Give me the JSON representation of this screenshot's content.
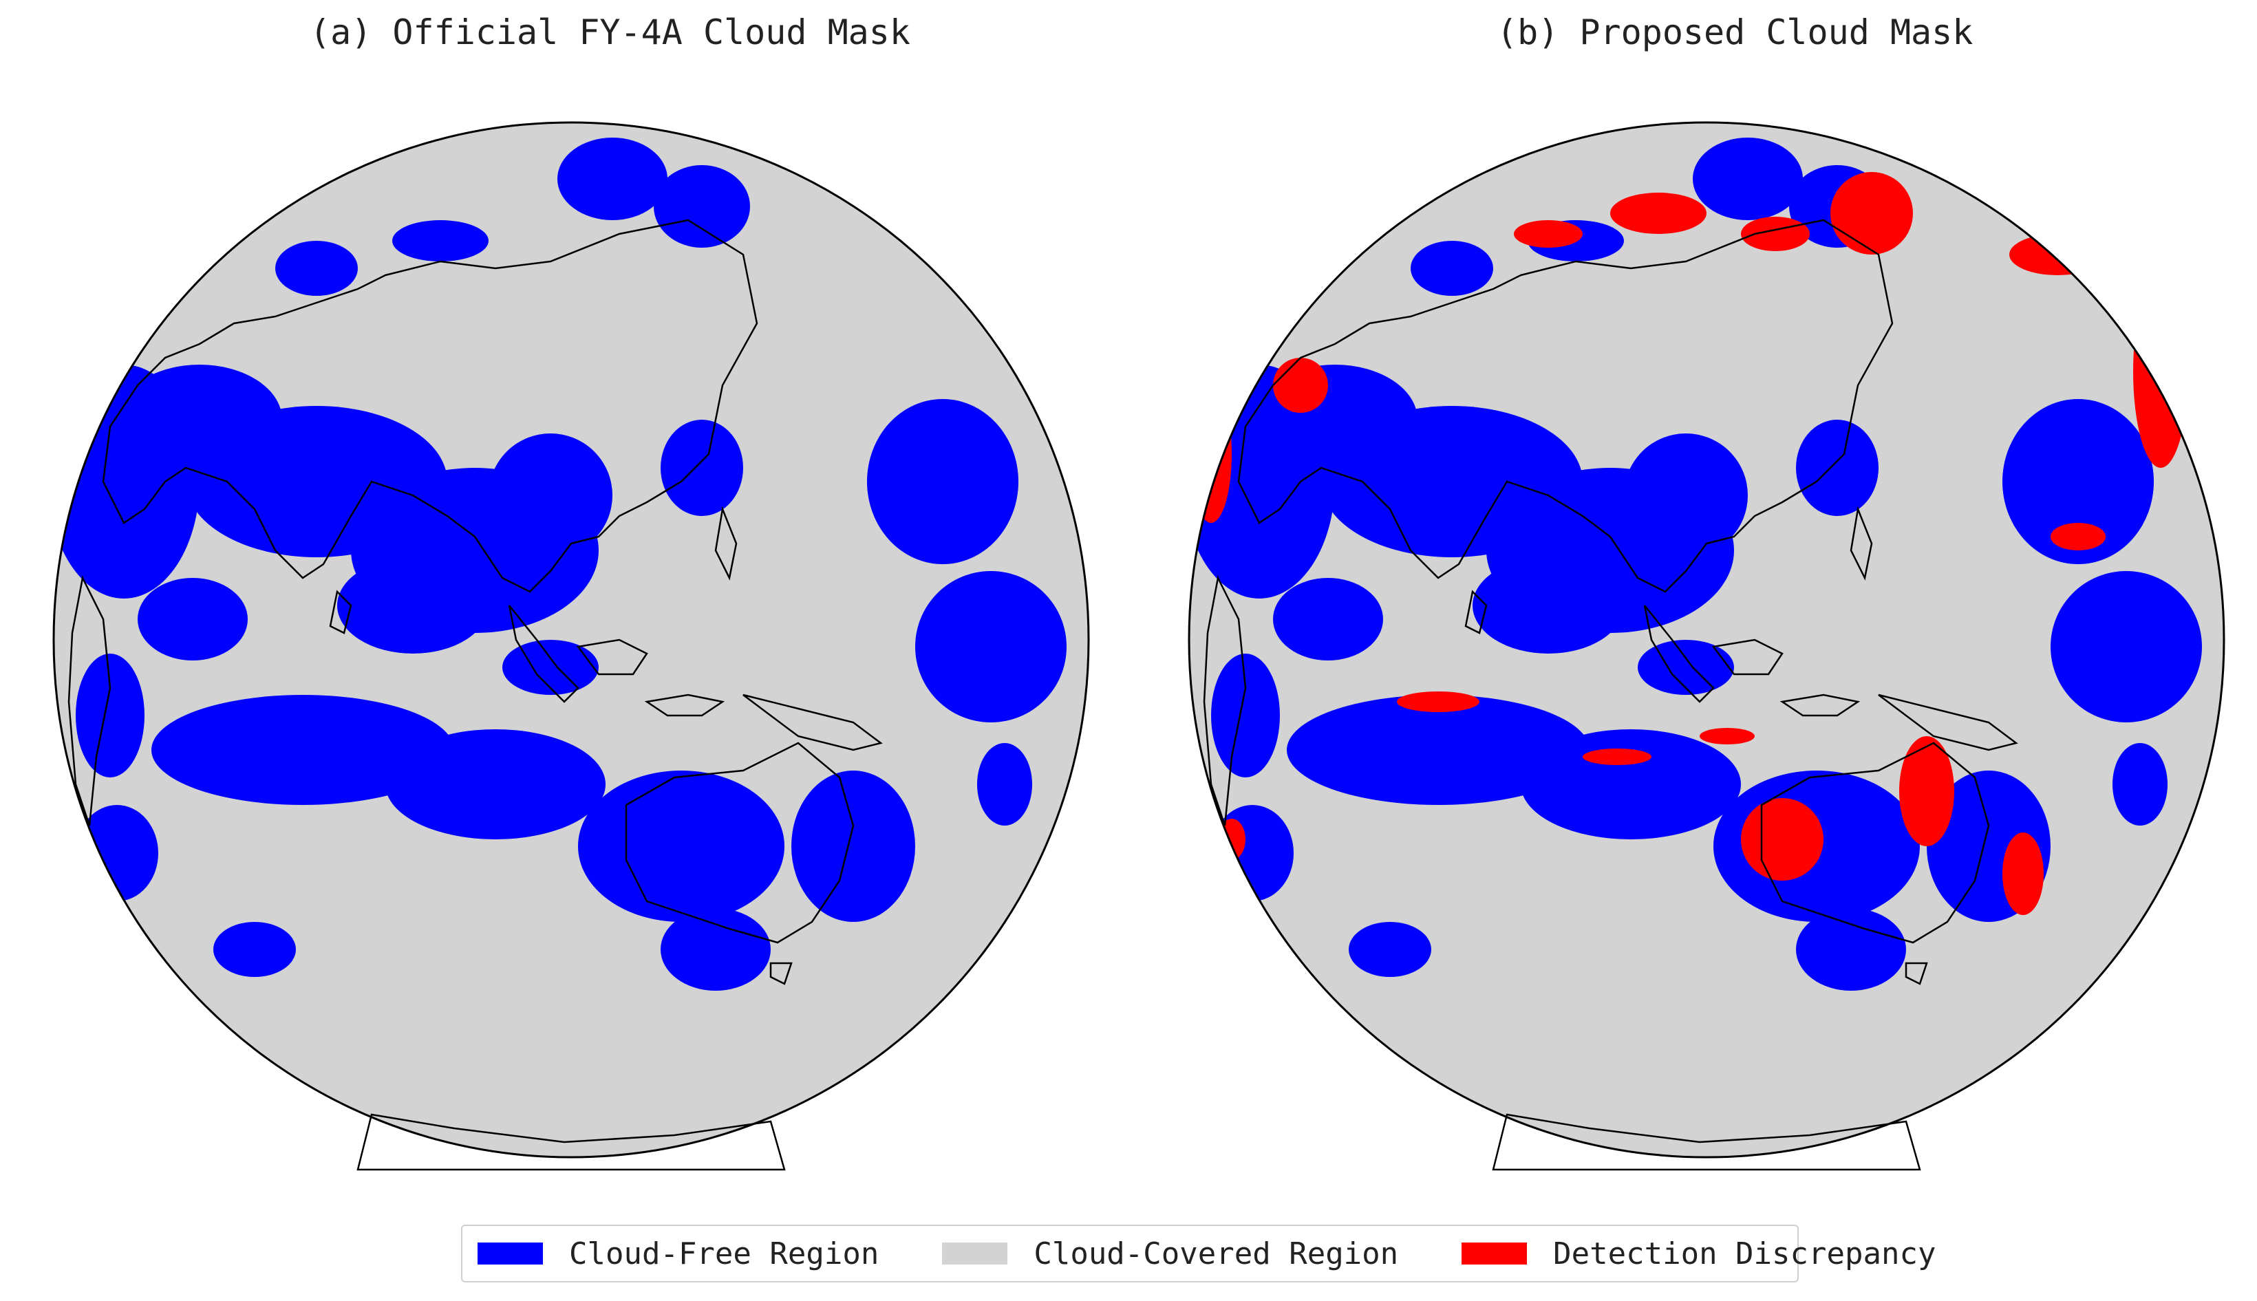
{
  "panels": [
    {
      "title": "(a) Official FY-4A Cloud Mask"
    },
    {
      "title": "(b) Proposed Cloud Mask"
    }
  ],
  "legend": [
    {
      "label": "Cloud-Free Region",
      "color": "#0000ff"
    },
    {
      "label": "Cloud-Covered Region",
      "color": "#d3d3d3"
    },
    {
      "label": "Detection Discrepancy",
      "color": "#ff0000"
    }
  ],
  "colors": {
    "cloud_free": "#0000ff",
    "cloud_covered": "#d3d3d3",
    "discrepancy": "#ff0000",
    "coastline": "#000000"
  }
}
